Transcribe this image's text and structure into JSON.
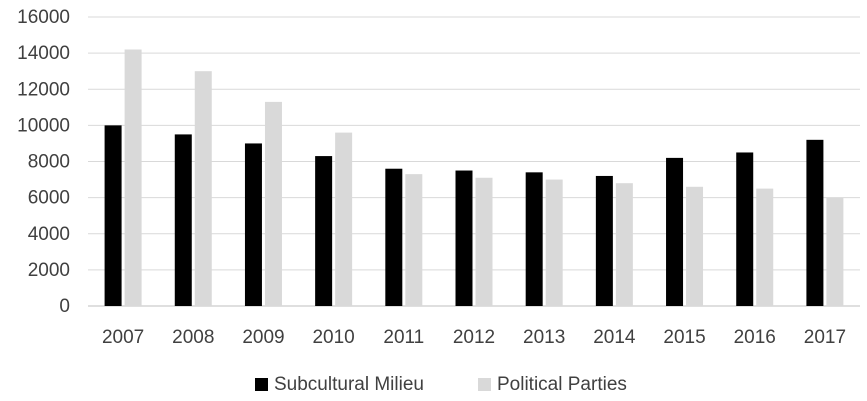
{
  "chart_data": {
    "type": "bar",
    "title": "",
    "xlabel": "",
    "ylabel": "",
    "categories": [
      "2007",
      "2008",
      "2009",
      "2010",
      "2011",
      "2012",
      "2013",
      "2014",
      "2015",
      "2016",
      "2017"
    ],
    "series": [
      {
        "name": "Subcultural Milieu",
        "color": "#000000",
        "values": [
          10000,
          9500,
          9000,
          8300,
          7600,
          7500,
          7400,
          7200,
          8200,
          8500,
          9200
        ]
      },
      {
        "name": "Political Parties",
        "color": "#d9d9d9",
        "values": [
          14200,
          13000,
          11300,
          9600,
          7300,
          7100,
          7000,
          6800,
          6600,
          6500,
          6000
        ]
      }
    ],
    "ylim": [
      0,
      16000
    ],
    "yticks": [
      0,
      2000,
      4000,
      6000,
      8000,
      10000,
      12000,
      14000,
      16000
    ],
    "grid": true,
    "legend_position": "bottom"
  }
}
